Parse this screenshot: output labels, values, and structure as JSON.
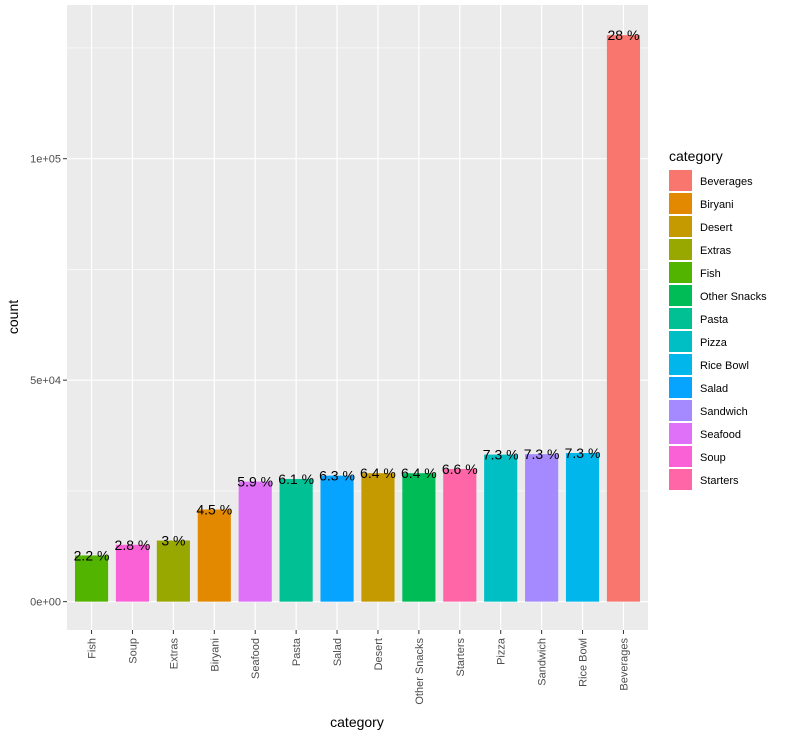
{
  "chart_data": {
    "type": "bar",
    "xlabel": "category",
    "ylabel": "count",
    "ylim": [
      -6400,
      134700
    ],
    "yticks": [
      0,
      50000,
      100000
    ],
    "ytick_labels": [
      "0e+00",
      "5e+04",
      "1e+05"
    ],
    "grid": true,
    "legend": {
      "title": "category",
      "position": "right",
      "entries": [
        "Beverages",
        "Biryani",
        "Desert",
        "Extras",
        "Fish",
        "Other Snacks",
        "Pasta",
        "Pizza",
        "Rice Bowl",
        "Salad",
        "Sandwich",
        "Seafood",
        "Soup",
        "Starters"
      ]
    },
    "colors": {
      "Beverages": "#F8766D",
      "Biryani": "#E38900",
      "Desert": "#C49A00",
      "Extras": "#99A800",
      "Fish": "#53B400",
      "Other Snacks": "#00BC56",
      "Pasta": "#00C094",
      "Pizza": "#00BFC4",
      "Rice Bowl": "#00B6EB",
      "Salad": "#06A4FF",
      "Sandwich": "#A58AFF",
      "Seafood": "#DF70F8",
      "Soup": "#FB61D7",
      "Starters": "#FF66A8"
    },
    "categories": [
      "Fish",
      "Soup",
      "Extras",
      "Biryani",
      "Seafood",
      "Pasta",
      "Salad",
      "Desert",
      "Other Snacks",
      "Starters",
      "Pizza",
      "Sandwich",
      "Rice Bowl",
      "Beverages"
    ],
    "values": [
      10430,
      12840,
      13800,
      20800,
      27100,
      27700,
      28450,
      29000,
      29000,
      29950,
      33200,
      33300,
      33560,
      127900
    ],
    "labels": [
      "2.2 %",
      "2.8 %",
      "3 %",
      "4.5 %",
      "5.9 %",
      "6.1 %",
      "6.3 %",
      "6.4 %",
      "6.4 %",
      "6.6 %",
      "7.3 %",
      "7.3 %",
      "7.3 %",
      "28 %"
    ]
  }
}
